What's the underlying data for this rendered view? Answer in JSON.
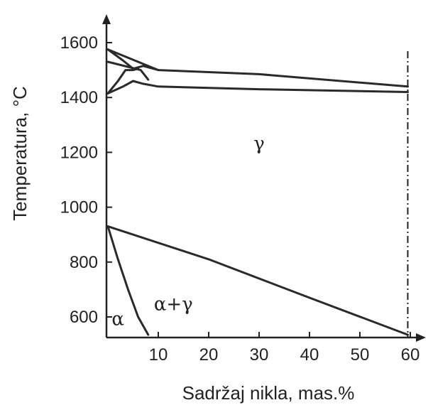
{
  "chart_data": {
    "type": "line",
    "xlabel": "Sadržaj nikla, mas.%",
    "ylabel": "Temperatura, °C",
    "xlim": [
      0,
      63
    ],
    "ylim": [
      540,
      1700
    ],
    "x_ticks": [
      10,
      20,
      30,
      40,
      50,
      60
    ],
    "y_ticks": [
      600,
      800,
      1000,
      1200,
      1400,
      1600
    ],
    "grid": false,
    "legend": "none",
    "series": [
      {
        "x": [
          0,
          10,
          30,
          59.5
        ],
        "y": [
          1575,
          1500,
          1485,
          1440
        ]
      },
      {
        "x": [
          0,
          3,
          5,
          7,
          10,
          30,
          59.5
        ],
        "y": [
          1415,
          1440,
          1460,
          1450,
          1440,
          1430,
          1420
        ]
      },
      {
        "x": [
          0,
          3,
          5,
          7,
          10
        ],
        "y": [
          1575,
          1535,
          1505,
          1515,
          1500
        ]
      },
      {
        "x": [
          0,
          2,
          3.5,
          5,
          6
        ],
        "y": [
          1415,
          1460,
          1500,
          1500,
          1505
        ]
      },
      {
        "x": [
          0,
          6.5,
          8
        ],
        "y": [
          1530,
          1500,
          1465
        ]
      },
      {
        "x": [
          0,
          20,
          40,
          59.5
        ],
        "y": [
          930,
          810,
          670,
          535
        ]
      },
      {
        "x": [
          0,
          2,
          4,
          6,
          8
        ],
        "y": [
          930,
          810,
          700,
          600,
          535
        ]
      }
    ],
    "vertical_line_x": 59.5,
    "annotations": [
      {
        "text": "γ",
        "x": 30,
        "y": 1210
      },
      {
        "text": "α+γ",
        "x": 13,
        "y": 625
      },
      {
        "text": "α",
        "x": 2,
        "y": 570
      }
    ]
  }
}
